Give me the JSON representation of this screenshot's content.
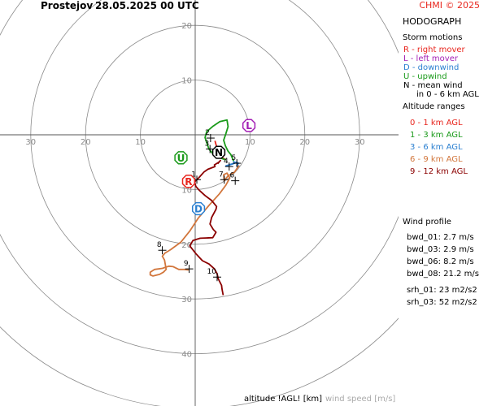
{
  "header": {
    "station": "Prostejov",
    "datetime": "28.05.2025 00 UTC",
    "credit": "CHMI © 2025"
  },
  "panel": {
    "title": "HODOGRAPH",
    "storm_title": "Storm motions",
    "storm_items": [
      {
        "text": "R - right mover",
        "color": "#e8261e"
      },
      {
        "text": "L - left mover",
        "color": "#a31fb5"
      },
      {
        "text": "D - downwind",
        "color": "#2a7fd0"
      },
      {
        "text": "U - upwind",
        "color": "#1a9a1a"
      },
      {
        "text": "N - mean wind",
        "color": "#000000"
      },
      {
        "text": "in 0 - 6 km AGL",
        "color": "#000000"
      }
    ],
    "alt_title": "Altitude ranges",
    "alt_items": [
      {
        "text": "0 - 1 km AGL",
        "color": "#e8261e"
      },
      {
        "text": "1 - 3 km AGL",
        "color": "#1a9a1a"
      },
      {
        "text": "3 - 6 km AGL",
        "color": "#2a7fd0"
      },
      {
        "text": "6 - 9 km AGL",
        "color": "#d2763c"
      },
      {
        "text": "9 - 12 km AGL",
        "color": "#8b0000"
      }
    ],
    "wind_title": "Wind profile",
    "params": [
      "bwd_01: 2.7 m/s",
      "bwd_03: 2.9 m/s",
      "bwd_06: 8.2 m/s",
      "bwd_08: 21.2 m/s",
      "srh_01: 23 m2/s2",
      "srh_03: 52 m2/s2"
    ]
  },
  "footer": {
    "altitude_label": "altitude !AGL! [km]",
    "speed_label": "wind speed [m/s]"
  },
  "chart_data": {
    "type": "line",
    "xlim": [
      -35,
      35
    ],
    "ylim": [
      -50,
      25
    ],
    "rings": [
      10,
      20,
      30,
      40,
      50
    ],
    "ring_labels": [
      "10",
      "20",
      "30",
      "40"
    ],
    "x_ticks": [
      "30",
      "20",
      "10",
      "10",
      "20",
      "30"
    ],
    "x_tick_values": [
      -30,
      -20,
      -10,
      10,
      20,
      30
    ],
    "series": [
      {
        "color": "#e8261e",
        "points": [
          [
            3.6,
            -1.1
          ],
          [
            3.8,
            -1.8
          ],
          [
            4.0,
            -2.5
          ],
          [
            4.3,
            -3.2
          ],
          [
            4.6,
            -3.8
          ],
          [
            5.0,
            -4.2
          ],
          [
            5.6,
            -4.6
          ]
        ]
      },
      {
        "color": "#1a9a1a",
        "points": [
          [
            5.6,
            -4.6
          ],
          [
            3.5,
            -3.8
          ],
          [
            2.5,
            -2.6
          ],
          [
            1.8,
            -0.5
          ],
          [
            2.1,
            0.6
          ],
          [
            3.3,
            1.6
          ],
          [
            4.5,
            2.4
          ],
          [
            5.8,
            2.7
          ],
          [
            6.0,
            1.5
          ],
          [
            5.6,
            0.2
          ],
          [
            5.2,
            -1.0
          ],
          [
            5.5,
            -2.0
          ],
          [
            6.0,
            -3.0
          ],
          [
            6.5,
            -3.6
          ],
          [
            6.8,
            -4.3
          ],
          [
            7.0,
            -4.8
          ]
        ]
      },
      {
        "color": "#2a7fd0",
        "points": [
          [
            7.0,
            -4.8
          ],
          [
            7.2,
            -5.2
          ],
          [
            6.6,
            -5.4
          ],
          [
            5.6,
            -5.7
          ],
          [
            6.8,
            -5.3
          ],
          [
            7.5,
            -5.0
          ],
          [
            7.9,
            -5.2
          ],
          [
            7.6,
            -5.6
          ],
          [
            7.9,
            -5.8
          ],
          [
            8.0,
            -5.6
          ]
        ]
      },
      {
        "color": "#d2763c",
        "points": [
          [
            8.0,
            -5.6
          ],
          [
            7.2,
            -6.8
          ],
          [
            6.0,
            -7.5
          ],
          [
            5.3,
            -8.4
          ],
          [
            5.2,
            -7.3
          ],
          [
            5.8,
            -7.0
          ],
          [
            6.3,
            -7.9
          ],
          [
            5.6,
            -9.2
          ],
          [
            4.4,
            -10.8
          ],
          [
            2.6,
            -12.8
          ],
          [
            0.5,
            -15.3
          ],
          [
            -1.0,
            -17.6
          ],
          [
            -2.6,
            -19.6
          ],
          [
            -4.5,
            -21.0
          ],
          [
            -5.5,
            -21.6
          ],
          [
            -6.0,
            -22.2
          ],
          [
            -5.6,
            -22.9
          ],
          [
            -5.3,
            -24.6
          ],
          [
            -5.8,
            -25.1
          ],
          [
            -6.5,
            -25.5
          ],
          [
            -7.7,
            -25.8
          ],
          [
            -8.2,
            -25.6
          ],
          [
            -8.2,
            -25.1
          ],
          [
            -7.4,
            -24.6
          ],
          [
            -6.0,
            -24.4
          ],
          [
            -4.8,
            -24.0
          ],
          [
            -4.0,
            -24.1
          ],
          [
            -3.0,
            -24.6
          ],
          [
            -2.0,
            -24.6
          ],
          [
            -1.2,
            -24.7
          ]
        ]
      },
      {
        "color": "#8b0000",
        "points": [
          [
            4.1,
            -5.3
          ],
          [
            4.6,
            -4.7
          ],
          [
            4.3,
            -5.0
          ],
          [
            3.5,
            -5.5
          ],
          [
            3.6,
            -5.8
          ],
          [
            2.3,
            -6.3
          ],
          [
            1.6,
            -6.8
          ],
          [
            0.7,
            -7.8
          ],
          [
            -0.1,
            -8.6
          ],
          [
            0.1,
            -9.4
          ],
          [
            0.7,
            -10.1
          ],
          [
            1.8,
            -11.1
          ],
          [
            3.0,
            -12.0
          ],
          [
            3.9,
            -13.1
          ],
          [
            3.8,
            -13.6
          ],
          [
            3.0,
            -15.1
          ],
          [
            2.7,
            -16.3
          ],
          [
            3.3,
            -17.3
          ],
          [
            3.8,
            -17.8
          ],
          [
            3.2,
            -18.8
          ],
          [
            0.9,
            -18.9
          ],
          [
            -0.4,
            -19.3
          ],
          [
            -1.0,
            -20.3
          ],
          [
            0.2,
            -21.8
          ],
          [
            1.3,
            -23.0
          ],
          [
            2.5,
            -23.6
          ],
          [
            3.5,
            -24.5
          ],
          [
            4.0,
            -25.4
          ],
          [
            4.2,
            -26.3
          ],
          [
            4.8,
            -27.5
          ],
          [
            4.9,
            -28.2
          ],
          [
            5.1,
            -29.3
          ]
        ]
      }
    ],
    "markers": [
      {
        "label": "1",
        "x": 0.3,
        "y": -8.2
      },
      {
        "label": "2",
        "x": 2.8,
        "y": -0.6
      },
      {
        "label": "3",
        "x": 2.7,
        "y": -2.6
      },
      {
        "label": "4",
        "x": 6.2,
        "y": -5.8
      },
      {
        "label": "5",
        "x": 7.6,
        "y": -5.2
      },
      {
        "label": "6",
        "x": 7.3,
        "y": -8.4
      },
      {
        "label": "7",
        "x": 5.3,
        "y": -8.2
      },
      {
        "label": "8",
        "x": -6.0,
        "y": -21.1
      },
      {
        "label": "9",
        "x": -1.1,
        "y": -24.5
      },
      {
        "label": "10",
        "x": 4.0,
        "y": -26.0
      }
    ],
    "storm_motion": [
      {
        "label": "R",
        "x": -1.2,
        "y": -8.5,
        "color": "#e8261e"
      },
      {
        "label": "L",
        "x": 9.8,
        "y": 1.7,
        "color": "#a31fb5"
      },
      {
        "label": "D",
        "x": 0.6,
        "y": -13.5,
        "color": "#2a7fd0"
      },
      {
        "label": "U",
        "x": -2.6,
        "y": -4.2,
        "color": "#1a9a1a"
      },
      {
        "label": "N",
        "x": 4.3,
        "y": -3.2,
        "color": "#000000"
      }
    ]
  }
}
